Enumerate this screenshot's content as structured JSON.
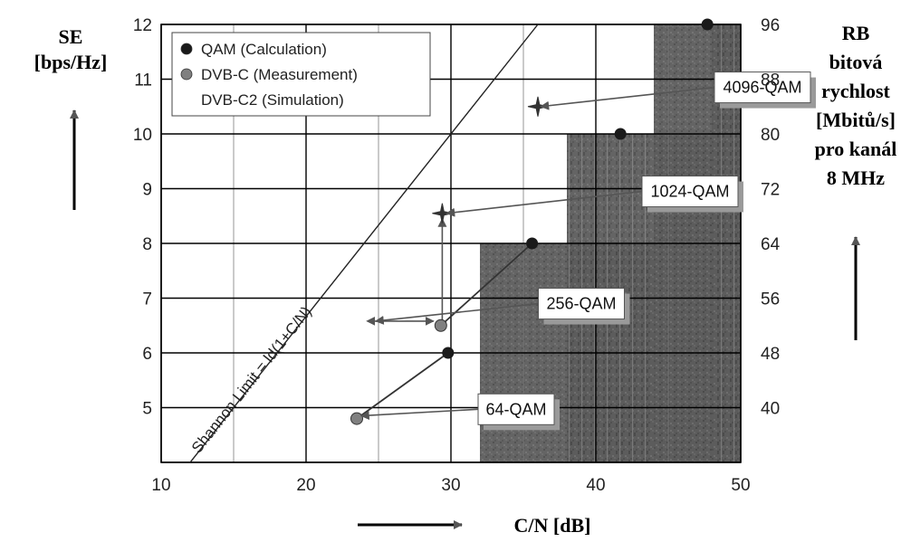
{
  "chart_data": {
    "type": "scatter",
    "title": "",
    "xlabel": "C/N  [dB]",
    "ylabel_left": [
      "SE",
      "[bps/Hz]"
    ],
    "ylabel_right": [
      "RB",
      "bitová",
      "rychlost",
      "[Mbitů/s]",
      "pro kanál",
      "8 MHz"
    ],
    "xlim": [
      10,
      50
    ],
    "ylim": [
      4,
      12
    ],
    "x_ticks": [
      10,
      20,
      30,
      40,
      50
    ],
    "y_ticks_left": [
      5,
      6,
      7,
      8,
      9,
      10,
      11,
      12
    ],
    "y_ticks_right": [
      {
        "se": 5,
        "label": "40"
      },
      {
        "se": 6,
        "label": "48"
      },
      {
        "se": 7,
        "label": "56"
      },
      {
        "se": 8,
        "label": "64"
      },
      {
        "se": 9,
        "label": "72"
      },
      {
        "se": 10,
        "label": "80"
      },
      {
        "se": 11,
        "label": "88"
      },
      {
        "se": 12,
        "label": "96"
      }
    ],
    "grid": true,
    "legend_position": "top-left",
    "series": [
      {
        "name": "QAM (Calculation)",
        "marker": "dot",
        "color": "#1a1a1a",
        "points": [
          [
            29.8,
            6
          ],
          [
            35.6,
            8
          ],
          [
            41.7,
            10
          ],
          [
            47.7,
            12
          ]
        ]
      },
      {
        "name": "DVB-C (Measurement)",
        "marker": "dot",
        "color": "#808080",
        "points": [
          [
            23.5,
            4.8
          ],
          [
            29.3,
            6.5
          ]
        ]
      },
      {
        "name": "DVB-C2 (Simulation)",
        "marker": "star",
        "color": "#333333",
        "points": [
          [
            29.4,
            8.55
          ],
          [
            36.0,
            10.5
          ]
        ]
      }
    ],
    "shannon_limit": {
      "label": "Shannon Limit = ld(1+C/N)",
      "points": [
        [
          12,
          4
        ],
        [
          36,
          12
        ]
      ]
    },
    "modulation_regions": [
      {
        "label": "64-QAM",
        "x_from": 32,
        "se_from": 4,
        "se_to": 8
      },
      {
        "label": "256-QAM",
        "x_from": 38,
        "se_from": 4,
        "se_to": 10
      },
      {
        "label": "1024-QAM",
        "x_from": 44,
        "se_from": 4,
        "se_to": 12
      },
      {
        "label": "4096-QAM",
        "x_from": 48,
        "se_from": 4,
        "se_to": 12
      }
    ],
    "annotations": [
      {
        "label": "64-QAM",
        "box": [
          34.5,
          4.97
        ],
        "arrow_to": [
          23.8,
          4.85
        ]
      },
      {
        "label": "256-QAM",
        "box": [
          39.0,
          6.9
        ],
        "arrow_to": [
          24.8,
          6.58
        ],
        "arrow_from": [
          29.3,
          6.6
        ]
      },
      {
        "label": "1024-QAM",
        "box": [
          46.5,
          8.95
        ],
        "arrow_to": [
          29.7,
          8.55
        ]
      },
      {
        "label": "4096-QAM",
        "box": [
          51.5,
          10.85
        ],
        "arrow_to": [
          36.2,
          10.5
        ]
      }
    ],
    "guides": [
      {
        "from": [
          24.7,
          6.58
        ],
        "to": [
          28.8,
          6.58
        ]
      },
      {
        "from": [
          29.4,
          6.55
        ],
        "to": [
          29.4,
          8.45
        ]
      }
    ]
  },
  "colors": {
    "dark_region": "#5a5a5a",
    "grid": "#000000",
    "arrow": "#555555"
  }
}
